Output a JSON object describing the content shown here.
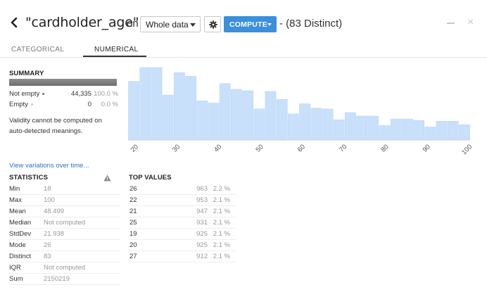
{
  "header": {
    "back_icon": "chevron-left-icon",
    "title": "\"cardholder_age\"",
    "on_word": "on",
    "sample_select": "Whole data",
    "settings_icon": "gear-icon",
    "compute_label": "COMPUTE",
    "distinct_text": "- (83 Distinct)",
    "minimize_icon": "minimize-icon",
    "close_icon": "close-icon",
    "close_glyph": "×"
  },
  "tabs": [
    {
      "label": "CATEGORICAL",
      "active": false
    },
    {
      "label": "NUMERICAL",
      "active": true
    }
  ],
  "summary": {
    "title": "SUMMARY",
    "rows": [
      {
        "label": "Not empty",
        "dot_color": "#777777",
        "count": "44,335",
        "pct": "100.0 %"
      },
      {
        "label": "Empty",
        "dot_color": "#cccccc",
        "count": "0",
        "pct": "0.0 %"
      }
    ],
    "validity_text": "Validity cannot be computed on auto-detected meanings."
  },
  "view_link": "View variations over time...",
  "statistics": {
    "title": "STATISTICS",
    "warning_icon": "warning-icon",
    "rows": [
      {
        "label": "Min",
        "value": "18"
      },
      {
        "label": "Max",
        "value": "100"
      },
      {
        "label": "Mean",
        "value": "48.499"
      },
      {
        "label": "Median",
        "value": "Not computed"
      },
      {
        "label": "StdDev",
        "value": "21.938"
      },
      {
        "label": "Mode",
        "value": "26"
      },
      {
        "label": "Distinct",
        "value": "83"
      },
      {
        "label": "IQR",
        "value": "Not computed"
      },
      {
        "label": "Sum",
        "value": "2150219"
      }
    ]
  },
  "top_values": {
    "title": "TOP VALUES",
    "rows": [
      {
        "value": "26",
        "count": "963",
        "pct": "2.2 %"
      },
      {
        "value": "22",
        "count": "953",
        "pct": "2.1 %"
      },
      {
        "value": "21",
        "count": "947",
        "pct": "2.1 %"
      },
      {
        "value": "25",
        "count": "931",
        "pct": "2.1 %"
      },
      {
        "value": "19",
        "count": "925",
        "pct": "2.1 %"
      },
      {
        "value": "20",
        "count": "925",
        "pct": "2.1 %"
      },
      {
        "value": "27",
        "count": "912",
        "pct": "2.1 %"
      }
    ]
  },
  "chart_data": {
    "type": "bar",
    "bar_color": "#c9e0fb",
    "xlim": [
      18,
      100
    ],
    "ylim": [
      0,
      1.0
    ],
    "x_ticks": [
      "20",
      "30",
      "40",
      "50",
      "60",
      "70",
      "80",
      "90",
      "100"
    ],
    "bins": [
      {
        "x0": 18.0,
        "x1": 20.73,
        "rel": 0.81
      },
      {
        "x0": 20.73,
        "x1": 23.47,
        "rel": 1.0
      },
      {
        "x0": 23.47,
        "x1": 26.2,
        "rel": 1.0
      },
      {
        "x0": 26.2,
        "x1": 28.93,
        "rel": 0.62
      },
      {
        "x0": 28.93,
        "x1": 31.67,
        "rel": 0.93
      },
      {
        "x0": 31.67,
        "x1": 34.4,
        "rel": 0.88
      },
      {
        "x0": 34.4,
        "x1": 37.13,
        "rel": 0.54
      },
      {
        "x0": 37.13,
        "x1": 39.87,
        "rel": 0.51
      },
      {
        "x0": 39.87,
        "x1": 42.6,
        "rel": 0.78
      },
      {
        "x0": 42.6,
        "x1": 45.33,
        "rel": 0.7
      },
      {
        "x0": 45.33,
        "x1": 48.07,
        "rel": 0.68
      },
      {
        "x0": 48.07,
        "x1": 50.8,
        "rel": 0.43
      },
      {
        "x0": 50.8,
        "x1": 53.53,
        "rel": 0.67
      },
      {
        "x0": 53.53,
        "x1": 56.27,
        "rel": 0.56
      },
      {
        "x0": 56.27,
        "x1": 59.0,
        "rel": 0.36
      },
      {
        "x0": 59.0,
        "x1": 61.73,
        "rel": 0.5
      },
      {
        "x0": 61.73,
        "x1": 64.47,
        "rel": 0.44
      },
      {
        "x0": 64.47,
        "x1": 67.2,
        "rel": 0.43
      },
      {
        "x0": 67.2,
        "x1": 69.93,
        "rel": 0.28
      },
      {
        "x0": 69.93,
        "x1": 72.67,
        "rel": 0.38
      },
      {
        "x0": 72.67,
        "x1": 75.4,
        "rel": 0.33
      },
      {
        "x0": 75.4,
        "x1": 78.13,
        "rel": 0.33
      },
      {
        "x0": 78.13,
        "x1": 80.87,
        "rel": 0.2
      },
      {
        "x0": 80.87,
        "x1": 83.6,
        "rel": 0.29
      },
      {
        "x0": 83.6,
        "x1": 86.33,
        "rel": 0.29
      },
      {
        "x0": 86.33,
        "x1": 89.07,
        "rel": 0.27
      },
      {
        "x0": 89.07,
        "x1": 91.8,
        "rel": 0.18
      },
      {
        "x0": 91.8,
        "x1": 94.53,
        "rel": 0.26
      },
      {
        "x0": 94.53,
        "x1": 97.27,
        "rel": 0.26
      },
      {
        "x0": 97.27,
        "x1": 100.0,
        "rel": 0.21
      }
    ]
  }
}
